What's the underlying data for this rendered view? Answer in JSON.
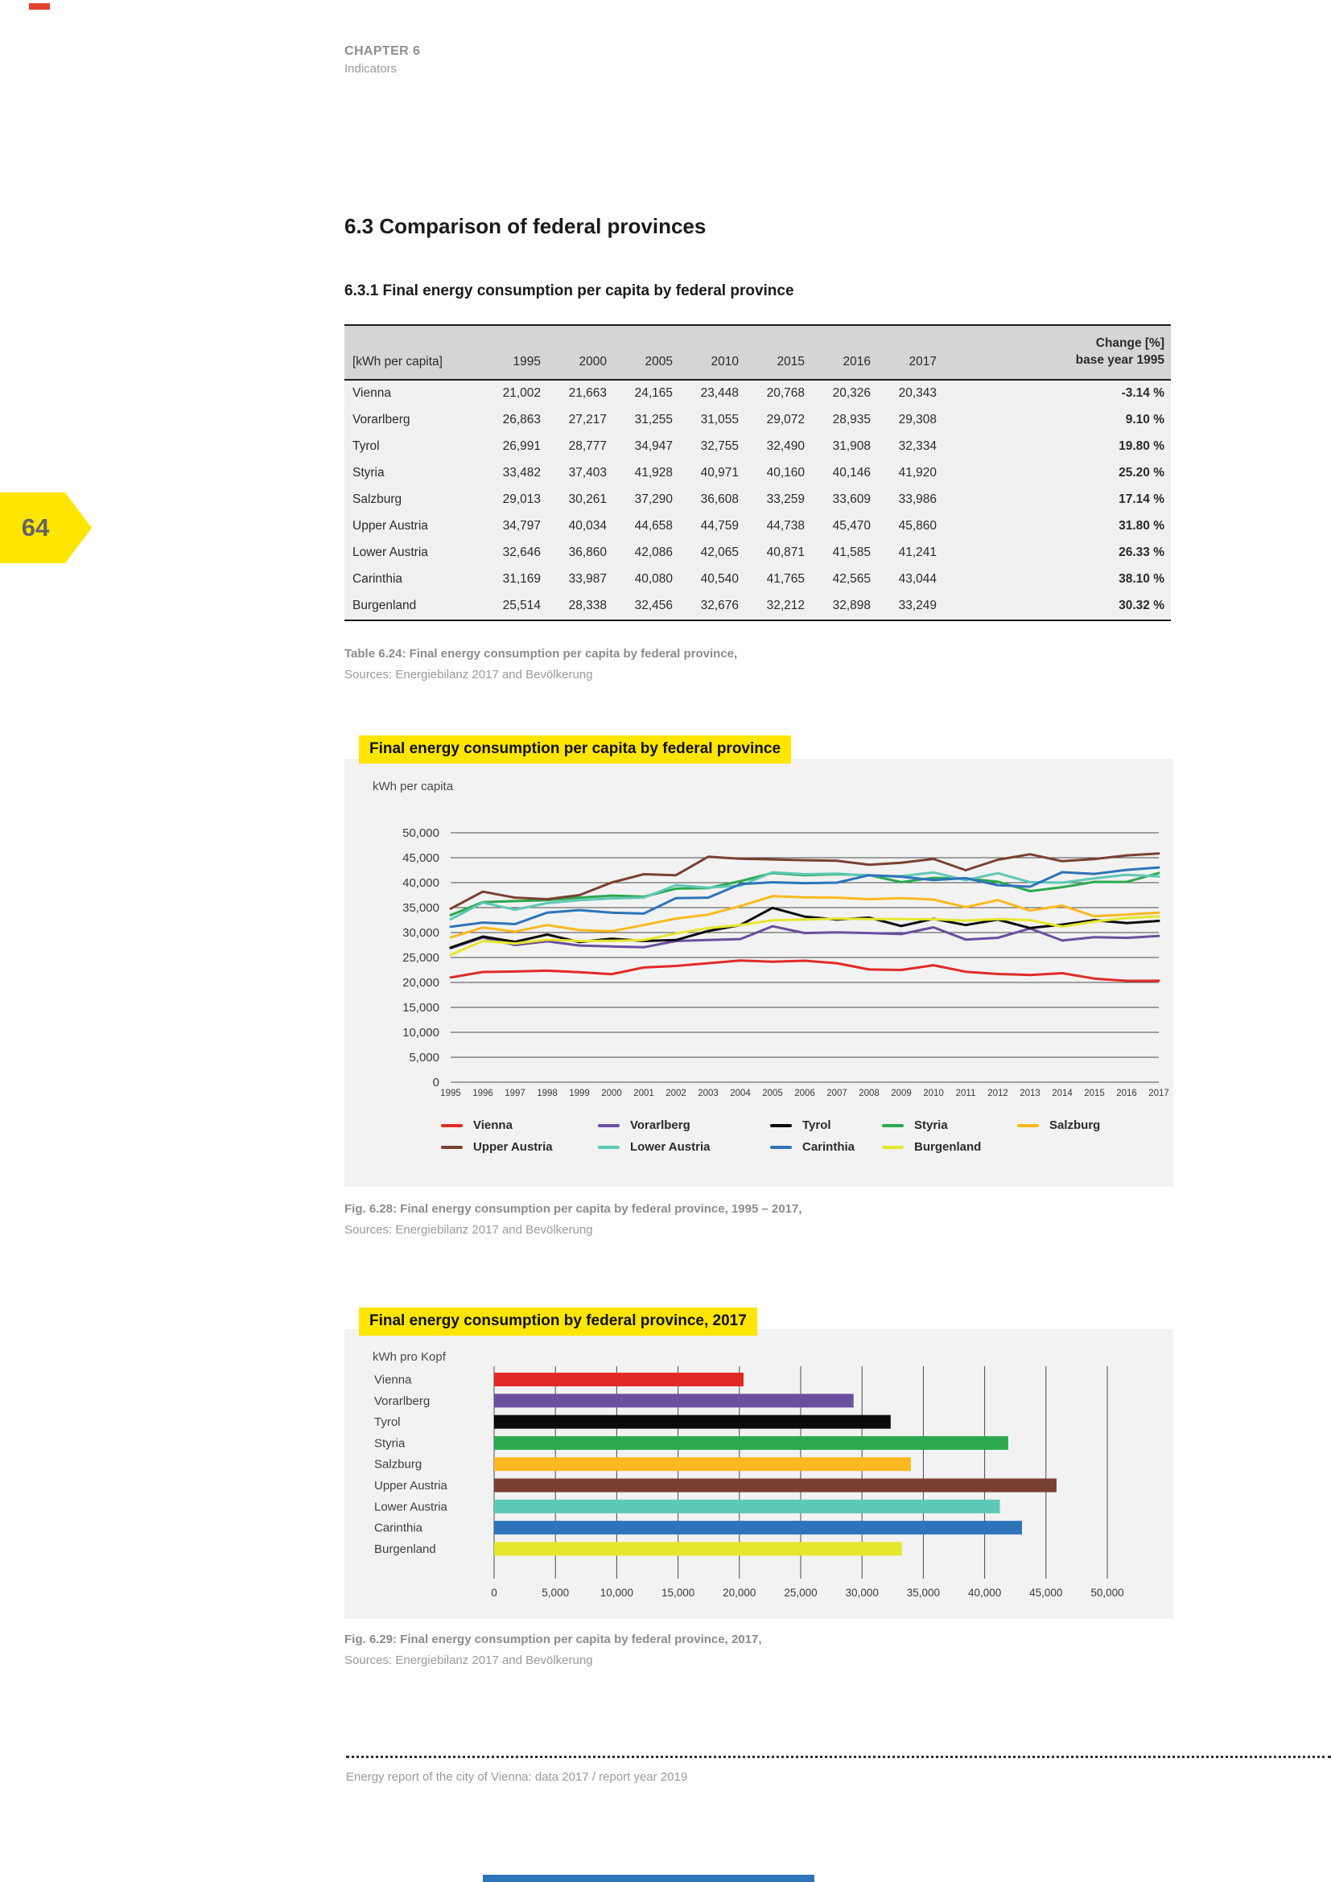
{
  "page": {
    "chapter": "CHAPTER 6",
    "chapter_sub": "Indicators",
    "page_number": "64",
    "section_title": "6.3 Comparison of federal provinces",
    "subsection_title": "6.3.1 Final energy consumption per capita by federal province",
    "footer": "Energy report of the city of Vienna: data 2017 / report year 2019"
  },
  "table": {
    "unit_label": "[kWh per capita]",
    "year_headers": [
      "1995",
      "2000",
      "2005",
      "2010",
      "2015",
      "2016",
      "2017"
    ],
    "change_header_line1": "Change [%]",
    "change_header_line2": "base year 1995",
    "rows": [
      {
        "name": "Vienna",
        "values": [
          "21,002",
          "21,663",
          "24,165",
          "23,448",
          "20,768",
          "20,326",
          "20,343"
        ],
        "change": "-3.14 %"
      },
      {
        "name": "Vorarlberg",
        "values": [
          "26,863",
          "27,217",
          "31,255",
          "31,055",
          "29,072",
          "28,935",
          "29,308"
        ],
        "change": "9.10 %"
      },
      {
        "name": "Tyrol",
        "values": [
          "26,991",
          "28,777",
          "34,947",
          "32,755",
          "32,490",
          "31,908",
          "32,334"
        ],
        "change": "19.80 %"
      },
      {
        "name": "Styria",
        "values": [
          "33,482",
          "37,403",
          "41,928",
          "40,971",
          "40,160",
          "40,146",
          "41,920"
        ],
        "change": "25.20 %"
      },
      {
        "name": "Salzburg",
        "values": [
          "29,013",
          "30,261",
          "37,290",
          "36,608",
          "33,259",
          "33,609",
          "33,986"
        ],
        "change": "17.14 %"
      },
      {
        "name": "Upper Austria",
        "values": [
          "34,797",
          "40,034",
          "44,658",
          "44,759",
          "44,738",
          "45,470",
          "45,860"
        ],
        "change": "31.80 %"
      },
      {
        "name": "Lower Austria",
        "values": [
          "32,646",
          "36,860",
          "42,086",
          "42,065",
          "40,871",
          "41,585",
          "41,241"
        ],
        "change": "26.33 %"
      },
      {
        "name": "Carinthia",
        "values": [
          "31,169",
          "33,987",
          "40,080",
          "40,540",
          "41,765",
          "42,565",
          "43,044"
        ],
        "change": "38.10 %"
      },
      {
        "name": "Burgenland",
        "values": [
          "25,514",
          "28,338",
          "32,456",
          "32,676",
          "32,212",
          "32,898",
          "33,249"
        ],
        "change": "30.32 %"
      }
    ],
    "caption_line1": "Table 6.24: Final energy consumption per capita by federal province,",
    "caption_line2": "Sources: Energiebilanz 2017 and Bevölkerung"
  },
  "line_chart": {
    "title": "Final energy consumption per capita by federal province",
    "unit_label": "kWh per capita",
    "caption_line1": "Fig. 6.28: Final energy consumption per capita by federal province, 1995 – 2017,",
    "caption_line2": "Sources: Energiebilanz 2017 and Bevölkerung"
  },
  "bar_chart": {
    "title": "Final energy consumption by federal province, 2017",
    "unit_label": "kWh pro Kopf",
    "caption_line1": "Fig. 6.29: Final energy consumption per capita by federal province, 2017,",
    "caption_line2": "Sources: Energiebilanz 2017 and Bevölkerung"
  },
  "colors": {
    "highlight_yellow": "#ffe500",
    "panel_gray": "#f2f2f2",
    "grid_line": "#4a4a4a",
    "bottom_strip_blue": "#2d74b9"
  },
  "chart_data": [
    {
      "type": "line",
      "title": "Final energy consumption per capita by federal province",
      "ylabel": "kWh per capita",
      "xlabel": "",
      "x": [
        1995,
        1996,
        1997,
        1998,
        1999,
        2000,
        2001,
        2002,
        2003,
        2004,
        2005,
        2006,
        2007,
        2008,
        2009,
        2010,
        2011,
        2012,
        2013,
        2014,
        2015,
        2016,
        2017
      ],
      "ylim": [
        0,
        50000
      ],
      "ytick_step": 5000,
      "grid": true,
      "legend_position": "bottom",
      "series": [
        {
          "name": "Vienna",
          "color": "#e22a25",
          "values": [
            21002,
            22100,
            22200,
            22350,
            22050,
            21663,
            23000,
            23300,
            23850,
            24400,
            24165,
            24350,
            23850,
            22600,
            22500,
            23448,
            22150,
            21700,
            21500,
            21850,
            20768,
            20326,
            20343
          ]
        },
        {
          "name": "Vorarlberg",
          "color": "#6b4e9f",
          "values": [
            26863,
            29000,
            27500,
            28250,
            27400,
            27217,
            27050,
            28300,
            28500,
            28700,
            31255,
            29900,
            30050,
            29900,
            29700,
            31055,
            28600,
            28950,
            30800,
            28400,
            29072,
            28935,
            29308
          ]
        },
        {
          "name": "Tyrol",
          "color": "#0a0a0a",
          "values": [
            26991,
            29200,
            28150,
            29600,
            28100,
            28777,
            28300,
            28500,
            30300,
            31500,
            34947,
            33200,
            32600,
            33000,
            31300,
            32755,
            31500,
            32600,
            30900,
            31600,
            32490,
            31908,
            32334
          ]
        },
        {
          "name": "Styria",
          "color": "#2ca94f",
          "values": [
            33482,
            36100,
            36300,
            36500,
            37000,
            37403,
            37200,
            38800,
            38900,
            40300,
            41928,
            41500,
            41700,
            41500,
            40100,
            40971,
            40800,
            40200,
            38300,
            39100,
            40160,
            40146,
            41920
          ]
        },
        {
          "name": "Salzburg",
          "color": "#fbb81f",
          "values": [
            29013,
            31000,
            30200,
            31500,
            30500,
            30261,
            31500,
            32800,
            33600,
            35300,
            37290,
            37050,
            37000,
            36700,
            36900,
            36608,
            35100,
            36500,
            34400,
            35400,
            33259,
            33609,
            33986
          ]
        },
        {
          "name": "Upper Austria",
          "color": "#7a4031",
          "values": [
            34797,
            38200,
            37000,
            36700,
            37500,
            40034,
            41700,
            41500,
            45200,
            44800,
            44658,
            44500,
            44400,
            43600,
            44000,
            44759,
            42500,
            44600,
            45700,
            44300,
            44738,
            45470,
            45860
          ]
        },
        {
          "name": "Lower Austria",
          "color": "#5ec8b7",
          "values": [
            32646,
            36000,
            34600,
            35900,
            36500,
            36860,
            37000,
            39500,
            39000,
            39400,
            42086,
            41700,
            41800,
            41400,
            41300,
            42065,
            40500,
            41900,
            40100,
            40000,
            40871,
            41585,
            41241
          ]
        },
        {
          "name": "Carinthia",
          "color": "#2d74b9",
          "values": [
            31169,
            32000,
            31700,
            34000,
            34500,
            33987,
            33800,
            36900,
            37000,
            39700,
            40080,
            39900,
            40000,
            41500,
            41200,
            40540,
            40900,
            39500,
            39200,
            42100,
            41765,
            42565,
            43044
          ]
        },
        {
          "name": "Burgenland",
          "color": "#e5e72e",
          "values": [
            25514,
            28300,
            27800,
            28600,
            28300,
            28338,
            28500,
            29800,
            30900,
            31500,
            32456,
            32600,
            32800,
            32700,
            32700,
            32676,
            32400,
            32700,
            32500,
            31200,
            32212,
            32898,
            33249
          ]
        }
      ]
    },
    {
      "type": "bar",
      "orientation": "horizontal",
      "title": "Final energy consumption by federal province, 2017",
      "xlabel": "kWh pro Kopf",
      "ylabel": "",
      "categories": [
        "Vienna",
        "Vorarlberg",
        "Tyrol",
        "Styria",
        "Salzburg",
        "Upper Austria",
        "Lower Austria",
        "Carinthia",
        "Burgenland"
      ],
      "values": [
        20343,
        29308,
        32334,
        41920,
        33986,
        45860,
        41241,
        43044,
        33249
      ],
      "colors": [
        "#e22a25",
        "#6b4e9f",
        "#0a0a0a",
        "#2ca94f",
        "#fbb81f",
        "#7a4031",
        "#5ec8b7",
        "#2d74b9",
        "#e5e72e"
      ],
      "xlim": [
        0,
        50000
      ],
      "xtick_step": 5000,
      "grid": true
    }
  ]
}
